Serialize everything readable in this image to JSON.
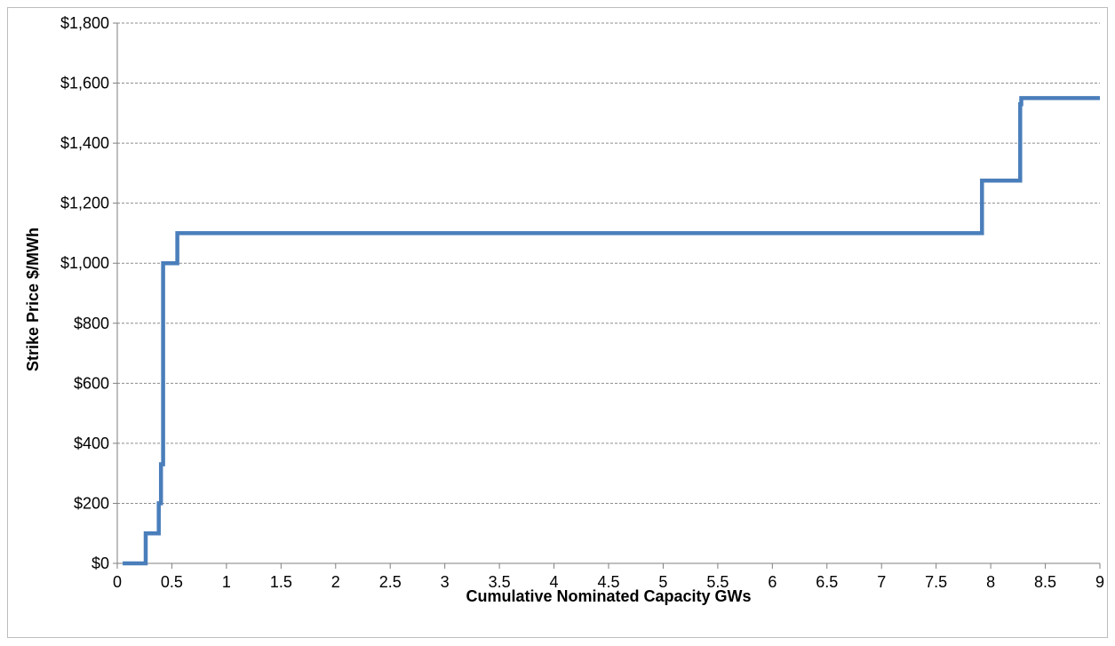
{
  "chart_data": {
    "type": "line",
    "step": true,
    "title": "",
    "xlabel": "Cumulative Nominated Capacity GWs",
    "ylabel": "Strike Price $/MWh",
    "xlim": [
      0,
      9
    ],
    "ylim": [
      0,
      1800
    ],
    "x_ticks": [
      0,
      0.5,
      1,
      1.5,
      2,
      2.5,
      3,
      3.5,
      4,
      4.5,
      5,
      5.5,
      6,
      6.5,
      7,
      7.5,
      8,
      8.5,
      9
    ],
    "x_tick_labels": [
      "0",
      "0.5",
      "1",
      "1.5",
      "2",
      "2.5",
      "3",
      "3.5",
      "4",
      "4.5",
      "5",
      "5.5",
      "6",
      "6.5",
      "7",
      "7.5",
      "8",
      "8.5",
      "9"
    ],
    "y_ticks": [
      0,
      200,
      400,
      600,
      800,
      1000,
      1200,
      1400,
      1600,
      1800
    ],
    "y_tick_labels": [
      "$0",
      "$200",
      "$400",
      "$600",
      "$800",
      "$1,000",
      "$1,200",
      "$1,400",
      "$1,600",
      "$1,800"
    ],
    "grid": {
      "horizontal": true,
      "vertical": false,
      "style": "dashed"
    },
    "legend": "none",
    "series": [
      {
        "color": "#4a7ebb",
        "x": [
          0.05,
          0.26,
          0.26,
          0.38,
          0.38,
          0.4,
          0.4,
          0.42,
          0.42,
          0.55,
          0.55,
          7.92,
          7.92,
          8.27,
          8.27,
          8.28,
          8.28,
          9.0
        ],
        "y": [
          0,
          0,
          100,
          100,
          200,
          200,
          330,
          330,
          1000,
          1000,
          1100,
          1100,
          1275,
          1275,
          1530,
          1530,
          1550,
          1550
        ]
      }
    ]
  }
}
